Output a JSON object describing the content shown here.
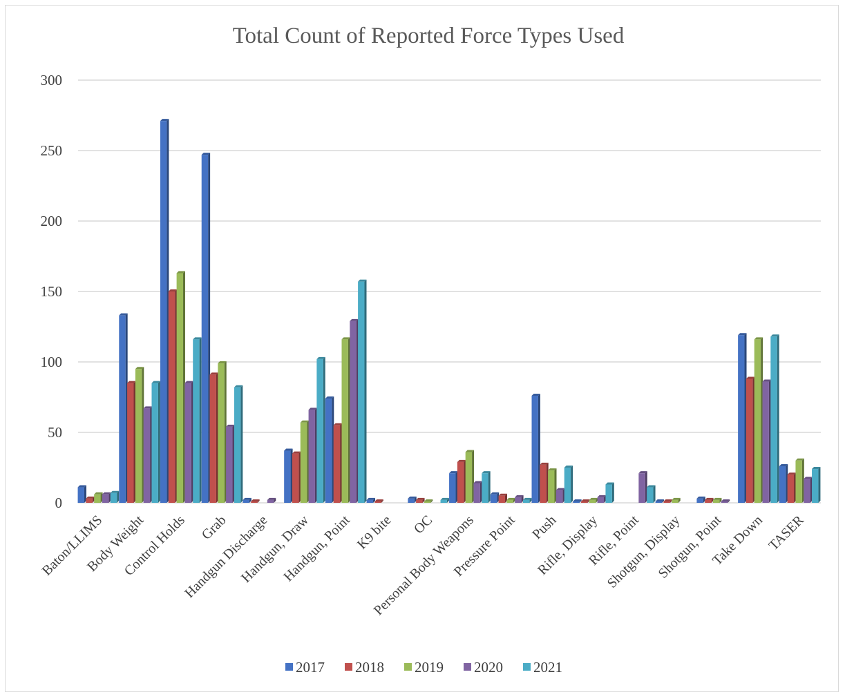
{
  "chart_data": {
    "type": "bar",
    "title": "Total Count of Reported Force Types Used",
    "xlabel": "",
    "ylabel": "",
    "ylim": [
      0,
      300
    ],
    "yticks": [
      0,
      50,
      100,
      150,
      200,
      250,
      300
    ],
    "grid": true,
    "legend_position": "bottom",
    "categories": [
      "Baton/LLIMS",
      "Body Weight",
      "Control Holds",
      "Grab",
      "Handgun Discharge",
      "Handgun, Draw",
      "Handgun, Point",
      "K9 bite",
      "OC",
      "Personal Body Weapons",
      "Pressure Point",
      "Push",
      "Rifle, Display",
      "Rifle, Point",
      "Shotgun, Display",
      "Shotgun, Point",
      "Take Down",
      "TASER"
    ],
    "series": [
      {
        "name": "2017",
        "color": "#4472C4",
        "values": [
          11,
          133,
          271,
          247,
          2,
          37,
          74,
          2,
          3,
          21,
          6,
          76,
          1,
          0,
          1,
          3,
          119,
          26
        ]
      },
      {
        "name": "2018",
        "color": "#C0504D",
        "values": [
          3,
          85,
          150,
          91,
          1,
          35,
          55,
          1,
          2,
          29,
          5,
          27,
          1,
          0,
          1,
          2,
          88,
          20
        ]
      },
      {
        "name": "2019",
        "color": "#9BBB59",
        "values": [
          6,
          95,
          163,
          99,
          0,
          57,
          116,
          0,
          1,
          36,
          2,
          23,
          2,
          0,
          2,
          2,
          116,
          30
        ]
      },
      {
        "name": "2020",
        "color": "#8064A2",
        "values": [
          6,
          67,
          85,
          54,
          2,
          66,
          129,
          0,
          0,
          14,
          4,
          9,
          4,
          21,
          0,
          1,
          86,
          17
        ]
      },
      {
        "name": "2021",
        "color": "#4BACC6",
        "values": [
          7,
          85,
          116,
          82,
          0,
          102,
          157,
          0,
          2,
          21,
          2,
          25,
          13,
          11,
          0,
          0,
          118,
          24
        ]
      }
    ]
  }
}
